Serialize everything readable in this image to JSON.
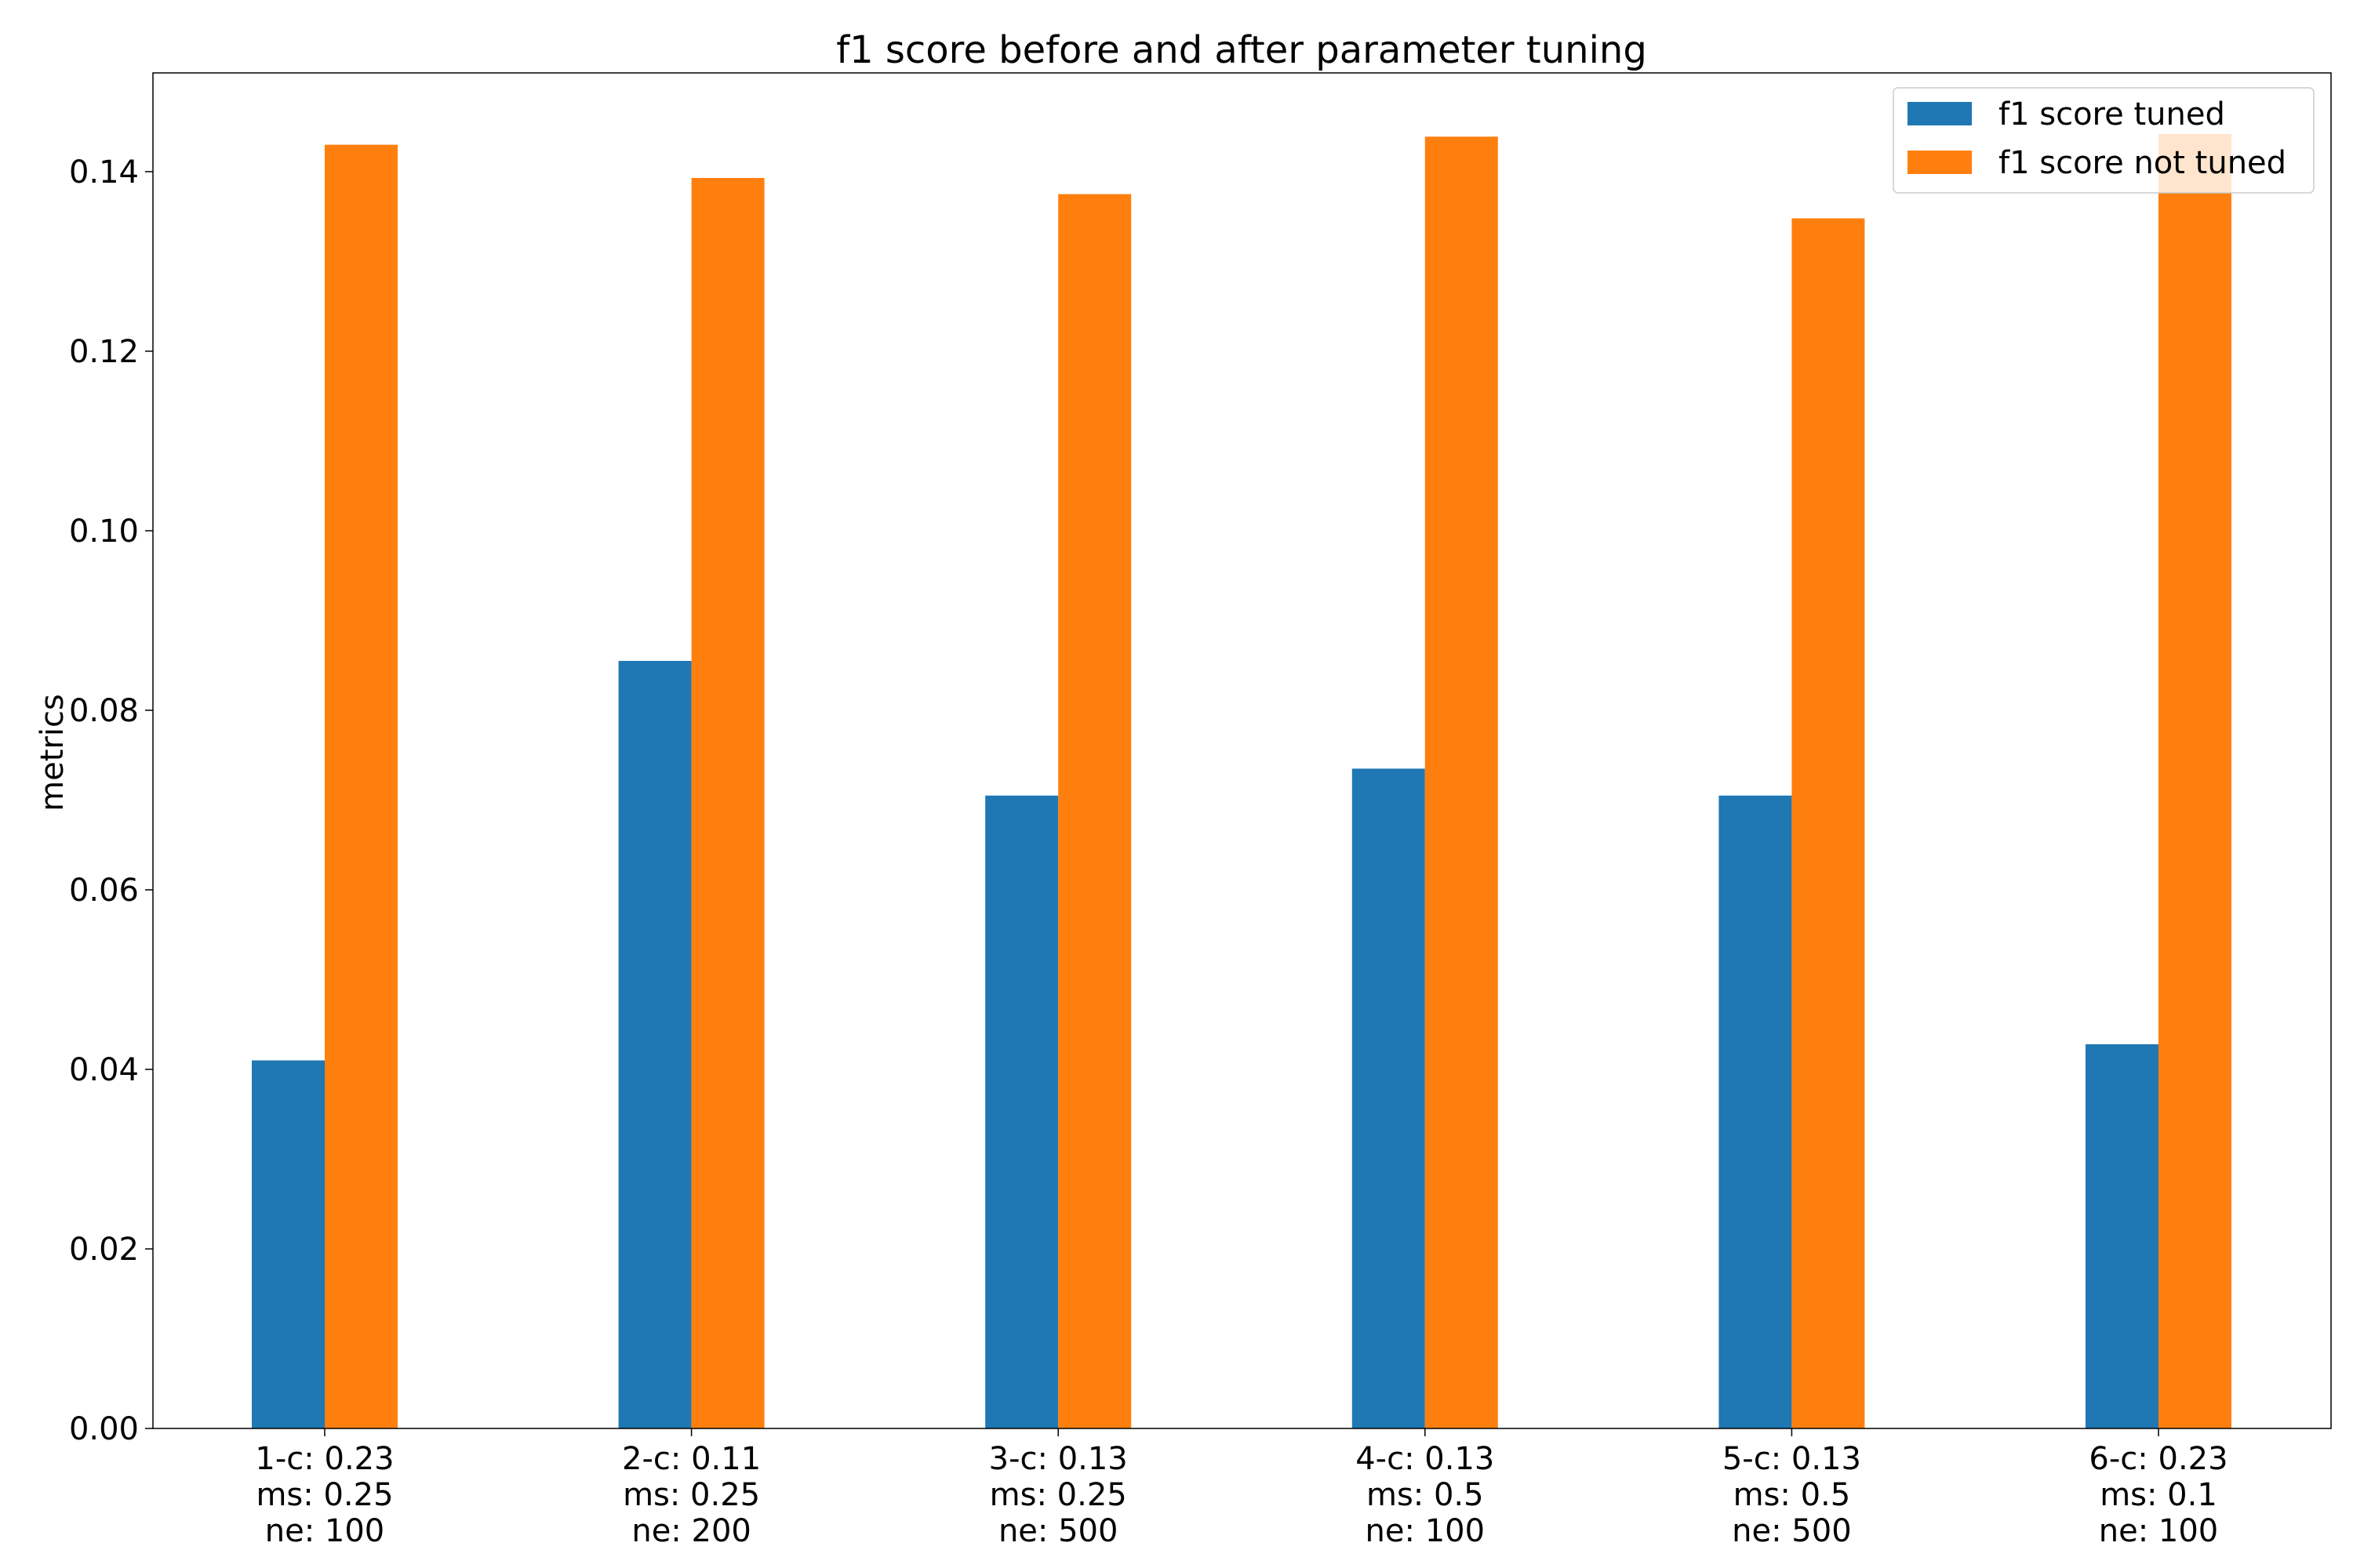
{
  "chart_data": {
    "type": "bar",
    "title": "f1 score before and after parameter tuning",
    "xlabel": "",
    "ylabel": "metrics",
    "ylim": [
      0,
      0.151
    ],
    "yticks": [
      "0.00",
      "0.02",
      "0.04",
      "0.06",
      "0.08",
      "0.10",
      "0.12",
      "0.14"
    ],
    "grid": false,
    "legend_position": "top-right",
    "categories": [
      [
        "1-c: 0.23",
        "ms: 0.25",
        "ne: 100"
      ],
      [
        "2-c: 0.11",
        "ms: 0.25",
        "ne: 200"
      ],
      [
        "3-c: 0.13",
        "ms: 0.25",
        "ne: 500"
      ],
      [
        "4-c: 0.13",
        "ms: 0.5",
        "ne: 100"
      ],
      [
        "5-c: 0.13",
        "ms: 0.5",
        "ne: 500"
      ],
      [
        "6-c: 0.23",
        "ms: 0.1",
        "ne: 100"
      ]
    ],
    "series": [
      {
        "name": "f1 score tuned",
        "color": "#1f77b4",
        "values": [
          0.041,
          0.0855,
          0.0705,
          0.0735,
          0.0705,
          0.0428
        ]
      },
      {
        "name": "f1 score not tuned",
        "color": "#ff7f0e",
        "values": [
          0.143,
          0.1393,
          0.1375,
          0.1439,
          0.1348,
          0.1442
        ]
      }
    ]
  }
}
